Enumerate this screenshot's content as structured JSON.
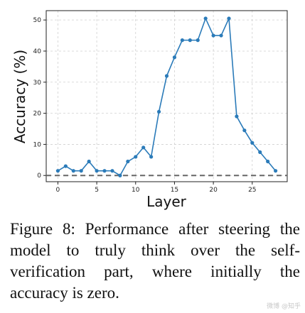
{
  "chart_data": {
    "type": "line",
    "xlabel": "Layer",
    "ylabel": "Accuracy (%)",
    "xlim": [
      -1.5,
      29.5
    ],
    "ylim": [
      -2,
      53
    ],
    "xticks": [
      0,
      5,
      10,
      15,
      20,
      25
    ],
    "yticks": [
      0,
      10,
      20,
      30,
      40,
      50
    ],
    "grid": true,
    "baseline": 0,
    "color": "#2b7bb9",
    "baseline_color": "#666666",
    "series": [
      {
        "x": [
          0,
          1,
          2,
          3,
          4,
          5,
          6,
          7,
          8,
          9,
          10,
          11,
          12,
          13,
          14,
          15,
          16,
          17,
          18,
          19,
          20,
          21,
          22,
          23,
          24,
          25,
          26,
          27,
          28
        ],
        "values": [
          1.5,
          3,
          1.5,
          1.5,
          4.5,
          1.5,
          1.5,
          1.5,
          0,
          4.5,
          6,
          9,
          6,
          20.5,
          32,
          38,
          43.5,
          43.5,
          43.5,
          50.5,
          45,
          45,
          50.5,
          19,
          14.5,
          10.5,
          7.5,
          4.5,
          1.5
        ]
      }
    ]
  },
  "caption": "Figure 8: Performance after steering the model to truly think over the self-verification part, where initially the accuracy is zero.",
  "watermark": "微博 @知乎"
}
